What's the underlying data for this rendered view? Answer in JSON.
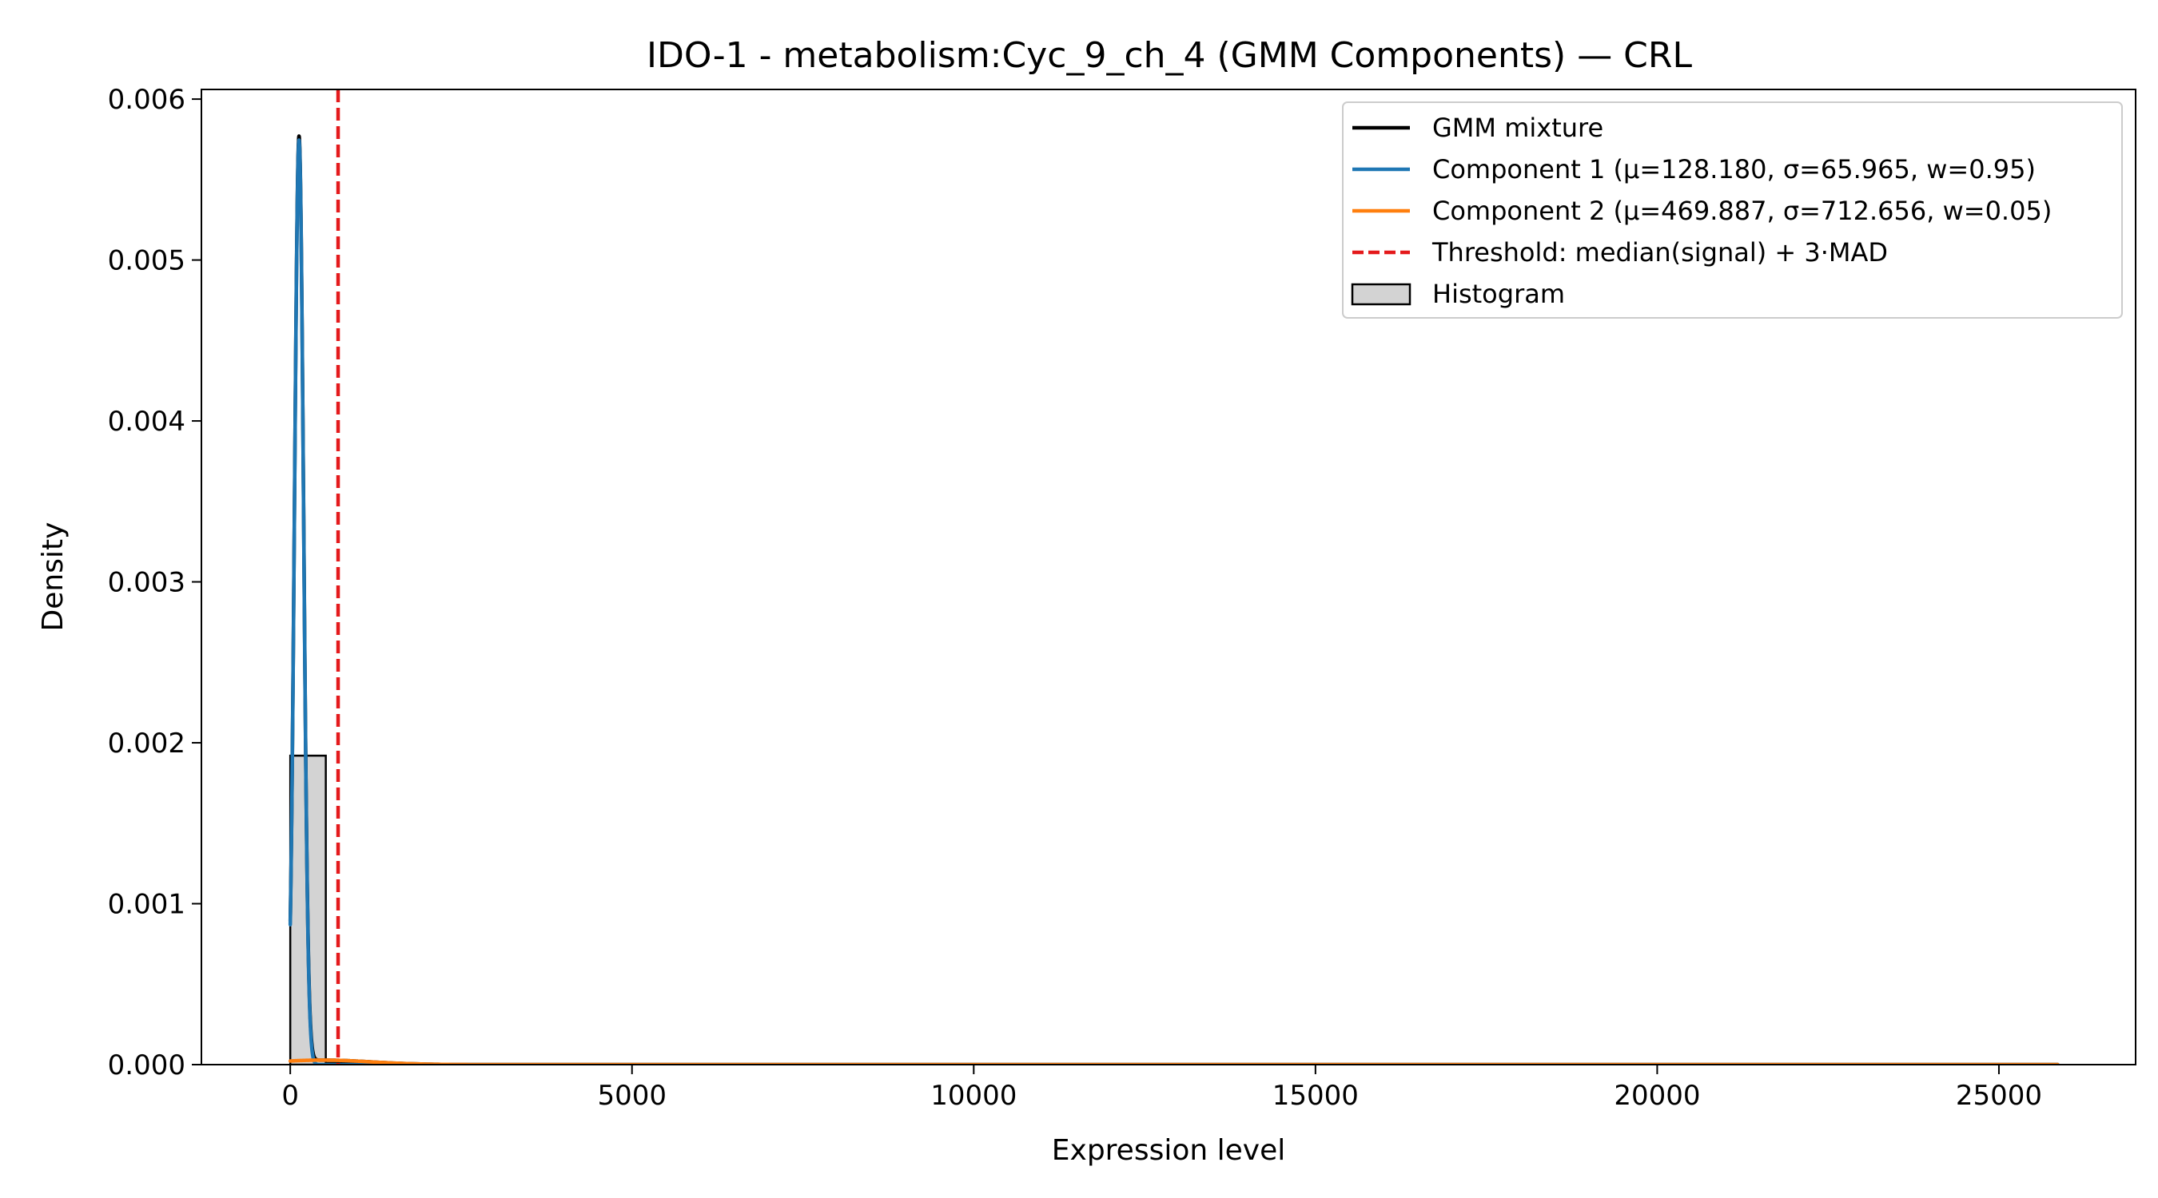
{
  "chart_data": {
    "type": "line",
    "title": "IDO-1 - metabolism:Cyc_9_ch_4 (GMM Components) — CRL",
    "xlabel": "Expression level",
    "ylabel": "Density",
    "xlim": [
      -1300,
      27000
    ],
    "ylim": [
      0,
      0.00606
    ],
    "xticks": [
      0,
      5000,
      10000,
      15000,
      20000,
      25000
    ],
    "xtick_labels": [
      "0",
      "5000",
      "10000",
      "15000",
      "20000",
      "25000"
    ],
    "yticks": [
      0,
      0.001,
      0.002,
      0.003,
      0.004,
      0.005,
      0.006
    ],
    "ytick_labels": [
      "0.000",
      "0.001",
      "0.002",
      "0.003",
      "0.004",
      "0.005",
      "0.006"
    ],
    "grid": false,
    "legend_position": "top-right",
    "x_range": [
      0,
      25900
    ],
    "series": [
      {
        "name": "GMM mixture",
        "kind": "mixture",
        "color": "#000000"
      },
      {
        "name": "Component 1 (μ=128.180, σ=65.965, w=0.95)",
        "kind": "gaussian",
        "mu": 128.18,
        "sigma": 65.965,
        "weight": 0.95,
        "color": "#1f77b4"
      },
      {
        "name": "Component 2 (μ=469.887, σ=712.656, w=0.05)",
        "kind": "gaussian",
        "mu": 469.887,
        "sigma": 712.656,
        "weight": 0.05,
        "color": "#ff7f0e"
      }
    ],
    "threshold": {
      "name": "Threshold: median(signal) + 3·MAD",
      "x": 700,
      "color": "#e41a1c"
    },
    "histogram": {
      "name": "Histogram",
      "fill": "#d3d3d3",
      "edge": "#000000",
      "bins": [
        {
          "x0": 0,
          "x1": 520,
          "density": 0.00192
        },
        {
          "x0": 520,
          "x1": 1040,
          "density": 1e-05
        }
      ]
    }
  }
}
